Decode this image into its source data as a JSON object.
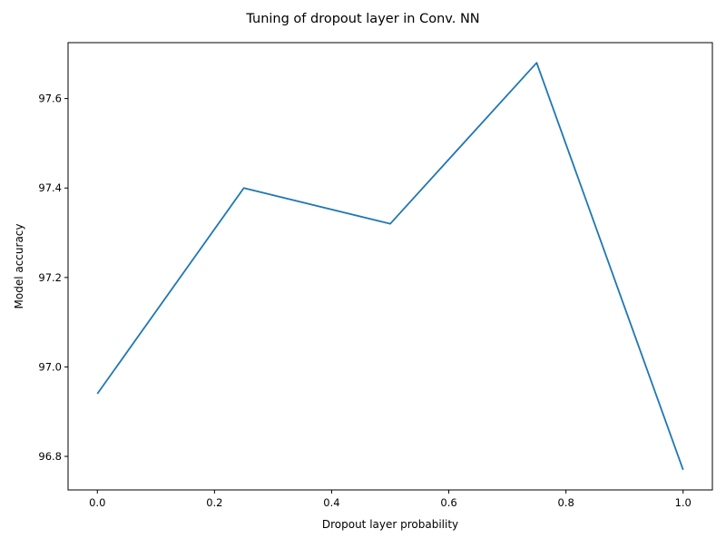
{
  "chart_data": {
    "type": "line",
    "title": "Tuning of dropout layer in Conv. NN",
    "xlabel": "Dropout layer probability",
    "ylabel": "Model accuracy",
    "x": [
      0.0,
      0.25,
      0.5,
      0.75,
      1.0
    ],
    "series": [
      {
        "values": [
          96.94,
          97.4,
          97.32,
          97.68,
          96.77
        ],
        "color": "#1f77b4"
      }
    ],
    "xlim": [
      -0.05,
      1.05
    ],
    "ylim": [
      96.725,
      97.725
    ],
    "xticks": [
      0.0,
      0.2,
      0.4,
      0.6,
      0.8,
      1.0
    ],
    "xtick_labels": [
      "0.0",
      "0.2",
      "0.4",
      "0.6",
      "0.8",
      "1.0"
    ],
    "yticks": [
      96.8,
      97.0,
      97.2,
      97.4,
      97.6
    ],
    "ytick_labels": [
      "96.8",
      "97.0",
      "97.2",
      "97.4",
      "97.6"
    ],
    "grid": false,
    "legend": "none"
  }
}
